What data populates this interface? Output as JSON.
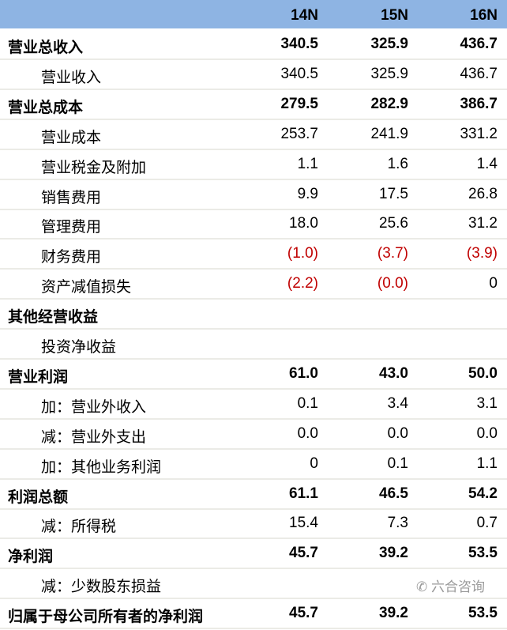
{
  "columns": [
    "14N",
    "15N",
    "16N"
  ],
  "rows": [
    {
      "label": "营业总收入",
      "bold": true,
      "values": [
        "340.5",
        "325.9",
        "436.7"
      ]
    },
    {
      "label": "营业收入",
      "bold": false,
      "values": [
        "340.5",
        "325.9",
        "436.7"
      ]
    },
    {
      "label": "营业总成本",
      "bold": true,
      "values": [
        "279.5",
        "282.9",
        "386.7"
      ]
    },
    {
      "label": "营业成本",
      "bold": false,
      "values": [
        "253.7",
        "241.9",
        "331.2"
      ]
    },
    {
      "label": "营业税金及附加",
      "bold": false,
      "values": [
        "1.1",
        "1.6",
        "1.4"
      ]
    },
    {
      "label": "销售费用",
      "bold": false,
      "values": [
        "9.9",
        "17.5",
        "26.8"
      ]
    },
    {
      "label": "管理费用",
      "bold": false,
      "values": [
        "18.0",
        "25.6",
        "31.2"
      ]
    },
    {
      "label": "财务费用",
      "bold": false,
      "values": [
        "(1.0)",
        "(3.7)",
        "(3.9)"
      ]
    },
    {
      "label": "资产减值损失",
      "bold": false,
      "values": [
        "(2.2)",
        "(0.0)",
        "0"
      ]
    },
    {
      "label": "其他经营收益",
      "bold": true,
      "values": [
        "",
        "",
        ""
      ]
    },
    {
      "label": "投资净收益",
      "bold": false,
      "values": [
        "",
        "",
        ""
      ]
    },
    {
      "label": "营业利润",
      "bold": true,
      "values": [
        "61.0",
        "43.0",
        "50.0"
      ]
    },
    {
      "label": "加：营业外收入",
      "bold": false,
      "values": [
        "0.1",
        "3.4",
        "3.1"
      ]
    },
    {
      "label": "减：营业外支出",
      "bold": false,
      "values": [
        "0.0",
        "0.0",
        "0.0"
      ]
    },
    {
      "label": "加：其他业务利润",
      "bold": false,
      "values": [
        "0",
        "0.1",
        "1.1"
      ]
    },
    {
      "label": "利润总额",
      "bold": true,
      "values": [
        "61.1",
        "46.5",
        "54.2"
      ]
    },
    {
      "label": "减：所得税",
      "bold": false,
      "values": [
        "15.4",
        "7.3",
        "0.7"
      ]
    },
    {
      "label": "净利润",
      "bold": true,
      "values": [
        "45.7",
        "39.2",
        "53.5"
      ]
    },
    {
      "label": "减：少数股东损益",
      "bold": false,
      "values": [
        "",
        "",
        ""
      ]
    },
    {
      "label": "归属于母公司所有者的净利润",
      "bold": true,
      "values": [
        "45.7",
        "39.2",
        "53.5"
      ]
    }
  ],
  "colors": {
    "header": "#8eb4e3",
    "negative": "#c00000"
  },
  "watermark": "六合咨询"
}
